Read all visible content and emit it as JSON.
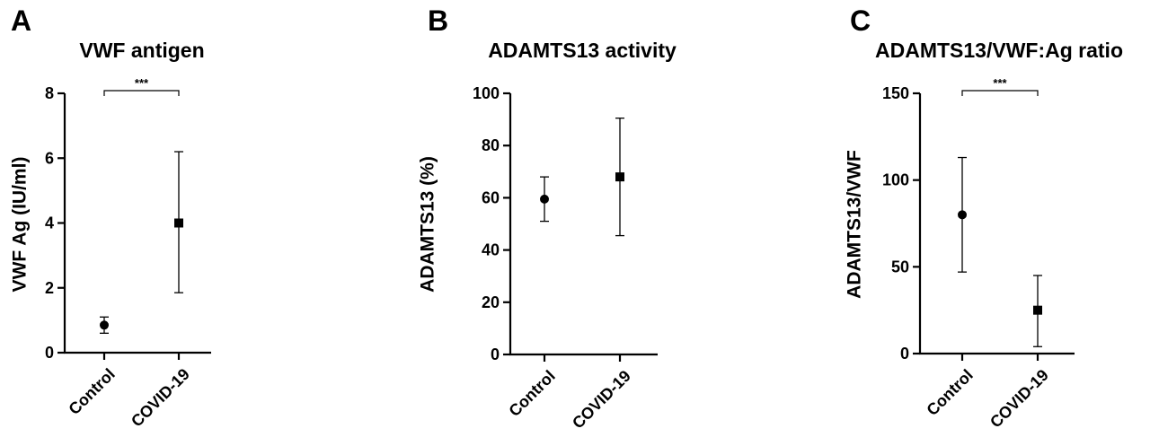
{
  "chart_data": [
    {
      "type": "scatter",
      "panel_label": "A",
      "title": "VWF antigen",
      "ylabel": "VWF Ag (IU/ml)",
      "categories": [
        "Control",
        "COVID-19"
      ],
      "ylim": [
        0,
        8
      ],
      "yticks": [
        0,
        2,
        4,
        6,
        8
      ],
      "points": [
        {
          "category": "Control",
          "value": 0.85,
          "low": 0.6,
          "high": 1.1,
          "marker": "circle"
        },
        {
          "category": "COVID-19",
          "value": 4.0,
          "low": 1.85,
          "high": 6.2,
          "marker": "square"
        }
      ],
      "significance": {
        "label": "***",
        "from": "Control",
        "to": "COVID-19",
        "y": 8.0
      }
    },
    {
      "type": "scatter",
      "panel_label": "B",
      "title": "ADAMTS13 activity",
      "ylabel": "ADAMTS13 (%)",
      "categories": [
        "Control",
        "COVID-19"
      ],
      "ylim": [
        0,
        100
      ],
      "yticks": [
        0,
        20,
        40,
        60,
        80,
        100
      ],
      "points": [
        {
          "category": "Control",
          "value": 59.5,
          "low": 51,
          "high": 68,
          "marker": "circle"
        },
        {
          "category": "COVID-19",
          "value": 68,
          "low": 45.5,
          "high": 90.5,
          "marker": "square"
        }
      ],
      "significance": null
    },
    {
      "type": "scatter",
      "panel_label": "C",
      "title": "ADAMTS13/VWF:Ag ratio",
      "ylabel": "ADAMTS13/VWF",
      "categories": [
        "Control",
        "COVID-19"
      ],
      "ylim": [
        0,
        150
      ],
      "yticks": [
        0,
        50,
        100,
        150
      ],
      "points": [
        {
          "category": "Control",
          "value": 80,
          "low": 47,
          "high": 113,
          "marker": "circle"
        },
        {
          "category": "COVID-19",
          "value": 25,
          "low": 4,
          "high": 45,
          "marker": "square"
        }
      ],
      "significance": {
        "label": "***",
        "from": "Control",
        "to": "COVID-19",
        "y": 150
      }
    }
  ]
}
